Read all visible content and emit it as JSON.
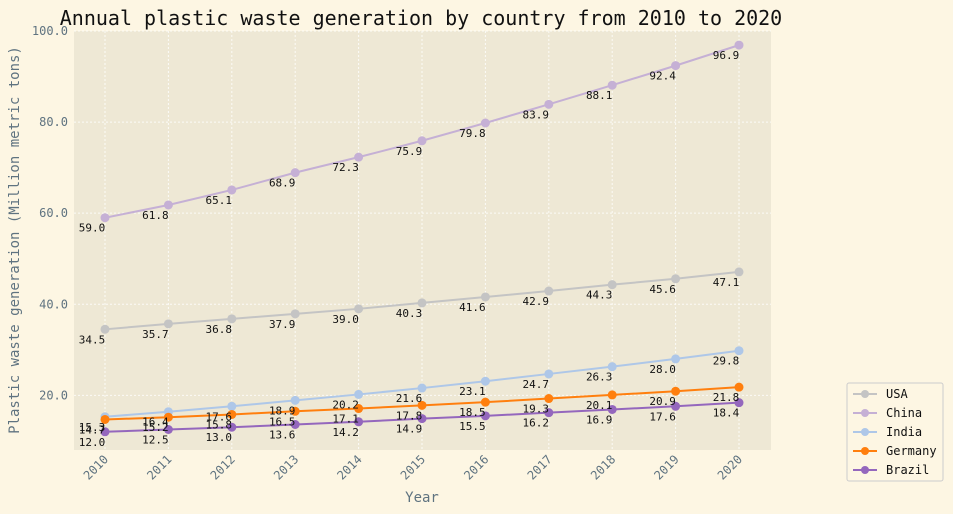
{
  "chart_data": {
    "type": "line",
    "title": "Annual plastic waste generation by country from 2010 to 2020",
    "xlabel": "Year",
    "ylabel": "Plastic waste generation (Million metric tons)",
    "x": [
      "2010",
      "2011",
      "2012",
      "2013",
      "2014",
      "2015",
      "2016",
      "2017",
      "2018",
      "2019",
      "2020"
    ],
    "ylim": [
      8,
      100
    ],
    "yticks": [
      "20.0",
      "40.0",
      "60.0",
      "80.0",
      "100.0"
    ],
    "yticks_values": [
      20,
      40,
      60,
      80,
      100
    ],
    "grid": true,
    "legend_position": "bottom-right outside",
    "series": [
      {
        "name": "USA",
        "color": "#c4c4c4",
        "values": [
          34.5,
          35.7,
          36.8,
          37.9,
          39.0,
          40.3,
          41.6,
          42.9,
          44.3,
          45.6,
          47.1
        ],
        "labels": [
          "34.5",
          "35.7",
          "36.8",
          "37.9",
          "39.0",
          "40.3",
          "41.6",
          "42.9",
          "44.3",
          "45.6",
          "47.1"
        ]
      },
      {
        "name": "China",
        "color": "#c5b0d5",
        "values": [
          59.0,
          61.8,
          65.1,
          68.9,
          72.3,
          75.9,
          79.8,
          83.9,
          88.1,
          92.4,
          96.9
        ],
        "labels": [
          "59.0",
          "61.8",
          "65.1",
          "68.9",
          "72.3",
          "75.9",
          "79.8",
          "83.9",
          "88.1",
          "92.4",
          "96.9"
        ]
      },
      {
        "name": "India",
        "color": "#aec7e8",
        "values": [
          15.3,
          16.4,
          17.6,
          18.9,
          20.2,
          21.6,
          23.1,
          24.7,
          26.3,
          28.0,
          29.8
        ],
        "labels": [
          "15.3",
          "16.4",
          "17.6",
          "18.9",
          "20.2",
          "21.6",
          "23.1",
          "24.7",
          "26.3",
          "28.0",
          "29.8"
        ]
      },
      {
        "name": "Germany",
        "color": "#ff7f0e",
        "values": [
          14.7,
          15.2,
          15.8,
          16.5,
          17.1,
          17.8,
          18.5,
          19.3,
          20.1,
          20.9,
          21.8
        ],
        "labels": [
          "14.7",
          "15.2",
          "15.8",
          "16.5",
          "17.1",
          "17.8",
          "18.5",
          "19.3",
          "20.1",
          "20.9",
          "21.8"
        ]
      },
      {
        "name": "Brazil",
        "color": "#9467bd",
        "values": [
          12.0,
          12.5,
          13.0,
          13.6,
          14.2,
          14.9,
          15.5,
          16.2,
          16.9,
          17.6,
          18.4
        ],
        "labels": [
          "12.0",
          "12.5",
          "13.0",
          "13.6",
          "14.2",
          "14.9",
          "15.5",
          "16.2",
          "16.9",
          "17.6",
          "18.4"
        ]
      }
    ]
  }
}
